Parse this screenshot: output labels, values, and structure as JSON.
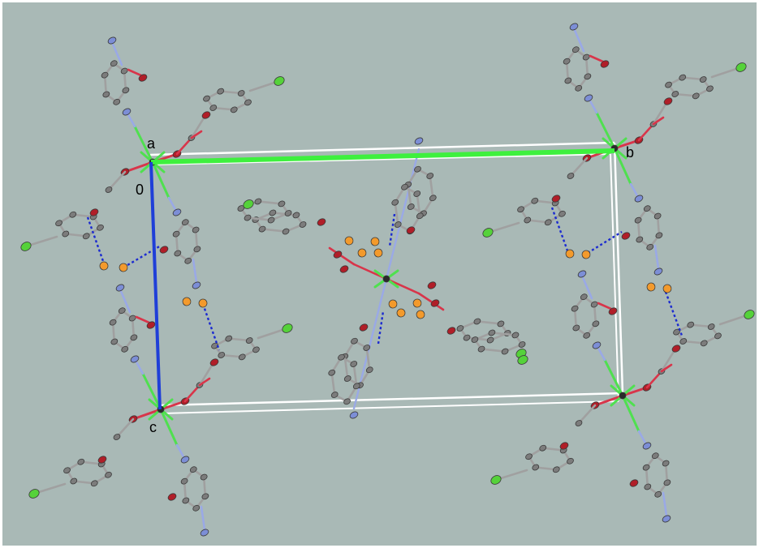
{
  "viewer": {
    "background_color": "#a9b9b6",
    "border_color": "#ffffff"
  },
  "unit_cell": {
    "axis_labels": {
      "a": "a",
      "b": "b",
      "c": "c",
      "origin": "0"
    },
    "edge_colors": {
      "a": "#3ef03e",
      "c": "#1f3fd8",
      "other": "#ffffff"
    }
  },
  "atom_colors": {
    "carbon": "#7c7c7c",
    "carbon_outline": "#3a3a3a",
    "oxygen": "#b01e28",
    "nitrogen": "#7c8ed6",
    "chlorine": "#55d23a",
    "metal": "#2a2a2a",
    "hydrogen_highlight": "#f39a2c"
  },
  "bond_colors": {
    "c_c": "#a0a0a0",
    "c_n": "#9aa9e6",
    "c_o": "#d8354a",
    "metal_ligand": "#4fe04f",
    "hydrogen_bond": "#1c2bd0"
  }
}
